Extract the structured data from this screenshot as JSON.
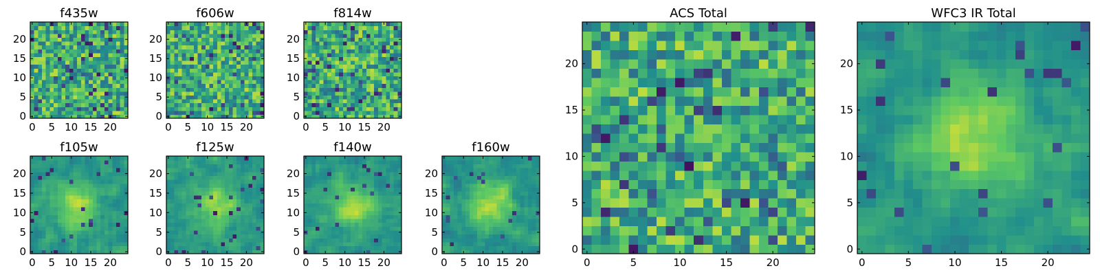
{
  "figure": {
    "background": "#ffffff",
    "colormap": "viridis",
    "colormap_stops": [
      "#440154",
      "#3b528b",
      "#21908c",
      "#5dc963",
      "#fde725"
    ]
  },
  "chart_data": [
    {
      "type": "heatmap",
      "title": "f435w",
      "texture": "noise",
      "grid_size": 25,
      "xlim": [
        0,
        24
      ],
      "ylim": [
        0,
        24
      ],
      "xticks": [
        0,
        5,
        10,
        15,
        20
      ],
      "yticks": [
        0,
        5,
        10,
        15,
        20
      ]
    },
    {
      "type": "heatmap",
      "title": "f606w",
      "texture": "noise",
      "grid_size": 25,
      "xlim": [
        0,
        24
      ],
      "ylim": [
        0,
        24
      ],
      "xticks": [
        0,
        5,
        10,
        15,
        20
      ],
      "yticks": [
        0,
        5,
        10,
        15,
        20
      ]
    },
    {
      "type": "heatmap",
      "title": "f814w",
      "texture": "noise",
      "grid_size": 25,
      "xlim": [
        0,
        24
      ],
      "ylim": [
        0,
        24
      ],
      "xticks": [
        0,
        5,
        10,
        15,
        20
      ],
      "yticks": [
        0,
        5,
        10,
        15,
        20
      ]
    },
    {
      "type": "heatmap",
      "title": "f105w",
      "texture": "smooth-source",
      "grid_size": 25,
      "xlim": [
        0,
        24
      ],
      "ylim": [
        0,
        24
      ],
      "xticks": [
        0,
        5,
        10,
        15,
        20
      ],
      "yticks": [
        0,
        5,
        10,
        15,
        20
      ]
    },
    {
      "type": "heatmap",
      "title": "f125w",
      "texture": "smooth-source",
      "grid_size": 25,
      "xlim": [
        0,
        24
      ],
      "ylim": [
        0,
        24
      ],
      "xticks": [
        0,
        5,
        10,
        15,
        20
      ],
      "yticks": [
        0,
        5,
        10,
        15,
        20
      ]
    },
    {
      "type": "heatmap",
      "title": "f140w",
      "texture": "smooth-source",
      "grid_size": 25,
      "xlim": [
        0,
        24
      ],
      "ylim": [
        0,
        24
      ],
      "xticks": [
        0,
        5,
        10,
        15,
        20
      ],
      "yticks": [
        0,
        5,
        10,
        15,
        20
      ]
    },
    {
      "type": "heatmap",
      "title": "f160w",
      "texture": "smooth-source",
      "grid_size": 25,
      "xlim": [
        0,
        24
      ],
      "ylim": [
        0,
        24
      ],
      "xticks": [
        0,
        5,
        10,
        15,
        20
      ],
      "yticks": [
        0,
        5,
        10,
        15,
        20
      ]
    },
    {
      "type": "heatmap",
      "title": "ACS Total",
      "texture": "noise",
      "grid_size": 25,
      "xlim": [
        0,
        24
      ],
      "ylim": [
        0,
        24
      ],
      "xticks": [
        0,
        5,
        10,
        15,
        20
      ],
      "yticks": [
        0,
        5,
        10,
        15,
        20
      ]
    },
    {
      "type": "heatmap",
      "title": "WFC3 IR Total",
      "texture": "smooth-source",
      "grid_size": 25,
      "xlim": [
        0,
        24
      ],
      "ylim": [
        0,
        24
      ],
      "xticks": [
        0,
        5,
        10,
        15,
        20
      ],
      "yticks": [
        0,
        5,
        10,
        15,
        20
      ]
    }
  ]
}
